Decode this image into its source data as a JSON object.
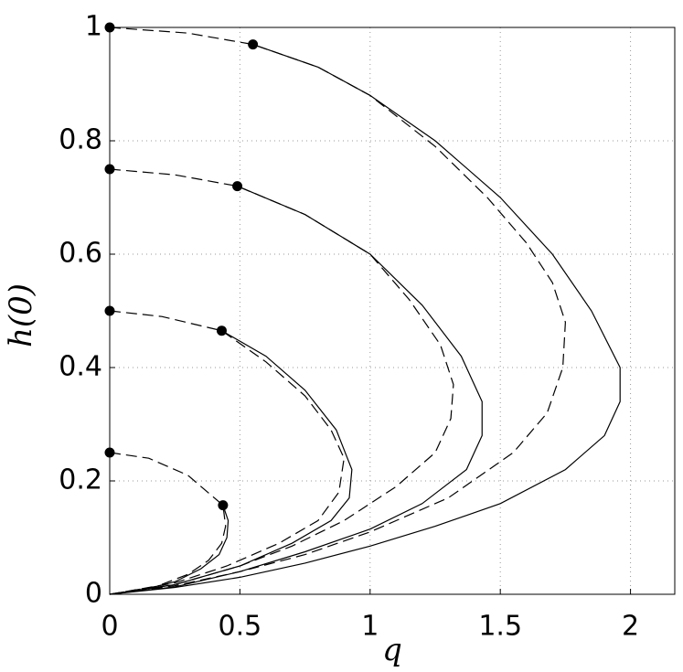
{
  "chart_data": {
    "type": "line",
    "xlabel": "q",
    "ylabel": "h(0)",
    "xlim": [
      0,
      2.17
    ],
    "ylim": [
      0,
      1
    ],
    "xticks": [
      0,
      0.5,
      1,
      1.5,
      2
    ],
    "yticks": [
      0,
      0.2,
      0.4,
      0.6,
      0.8,
      1
    ],
    "grid": true,
    "series": [
      {
        "color": "#000000",
        "dashed": false,
        "x": [
          0.55,
          0.8,
          1.0,
          1.25,
          1.5,
          1.7,
          1.85,
          1.96,
          1.96,
          1.9,
          1.75,
          1.5,
          1.25,
          1.0,
          0.75,
          0.5,
          0.25,
          0
        ],
        "values": [
          0.97,
          0.93,
          0.88,
          0.8,
          0.7,
          0.6,
          0.5,
          0.4,
          0.34,
          0.28,
          0.22,
          0.16,
          0.12,
          0.085,
          0.055,
          0.03,
          0.012,
          0
        ]
      },
      {
        "color": "#000000",
        "dashed": true,
        "x": [
          0,
          0.3,
          0.55,
          0.8,
          1.0,
          1.25,
          1.45,
          1.6,
          1.7,
          1.75,
          1.74,
          1.68,
          1.55,
          1.3,
          1.0,
          0.75,
          0.5,
          0.25,
          0
        ],
        "values": [
          1,
          0.99,
          0.97,
          0.93,
          0.88,
          0.79,
          0.7,
          0.62,
          0.55,
          0.48,
          0.4,
          0.32,
          0.25,
          0.17,
          0.11,
          0.07,
          0.04,
          0.015,
          0
        ]
      },
      {
        "color": "#000000",
        "dashed": false,
        "x": [
          0.49,
          0.75,
          1.0,
          1.2,
          1.35,
          1.43,
          1.43,
          1.37,
          1.2,
          1.0,
          0.75,
          0.5,
          0.25,
          0
        ],
        "values": [
          0.72,
          0.67,
          0.6,
          0.51,
          0.42,
          0.34,
          0.28,
          0.22,
          0.16,
          0.115,
          0.075,
          0.04,
          0.013,
          0
        ]
      },
      {
        "color": "#000000",
        "dashed": true,
        "x": [
          0,
          0.25,
          0.49,
          0.75,
          1.0,
          1.15,
          1.27,
          1.32,
          1.31,
          1.25,
          1.1,
          0.9,
          0.7,
          0.5,
          0.25,
          0
        ],
        "values": [
          0.75,
          0.74,
          0.72,
          0.67,
          0.6,
          0.52,
          0.44,
          0.37,
          0.31,
          0.25,
          0.19,
          0.13,
          0.085,
          0.05,
          0.017,
          0
        ]
      },
      {
        "color": "#000000",
        "dashed": false,
        "x": [
          0.43,
          0.6,
          0.75,
          0.87,
          0.93,
          0.92,
          0.85,
          0.7,
          0.5,
          0.25,
          0
        ],
        "values": [
          0.465,
          0.42,
          0.36,
          0.29,
          0.22,
          0.17,
          0.13,
          0.09,
          0.05,
          0.017,
          0
        ]
      },
      {
        "color": "#000000",
        "dashed": true,
        "x": [
          0,
          0.2,
          0.43,
          0.6,
          0.75,
          0.85,
          0.9,
          0.88,
          0.8,
          0.65,
          0.45,
          0.25,
          0
        ],
        "values": [
          0.5,
          0.49,
          0.465,
          0.41,
          0.35,
          0.29,
          0.24,
          0.18,
          0.13,
          0.09,
          0.05,
          0.02,
          0
        ]
      },
      {
        "color": "#000000",
        "dashed": false,
        "x": [
          0.435,
          0.455,
          0.45,
          0.42,
          0.35,
          0.25,
          0.12,
          0
        ],
        "values": [
          0.157,
          0.13,
          0.1,
          0.07,
          0.045,
          0.022,
          0.007,
          0
        ]
      },
      {
        "color": "#000000",
        "dashed": true,
        "x": [
          0,
          0.15,
          0.3,
          0.435,
          0.445,
          0.43,
          0.38,
          0.3,
          0.18,
          0
        ],
        "values": [
          0.25,
          0.24,
          0.21,
          0.157,
          0.12,
          0.09,
          0.06,
          0.035,
          0.014,
          0
        ]
      }
    ],
    "markers": {
      "color": "#000000",
      "x": [
        0,
        0,
        0,
        0,
        0.55,
        0.49,
        0.43,
        0.435
      ],
      "values": [
        1,
        0.75,
        0.5,
        0.25,
        0.97,
        0.72,
        0.465,
        0.157
      ]
    }
  }
}
